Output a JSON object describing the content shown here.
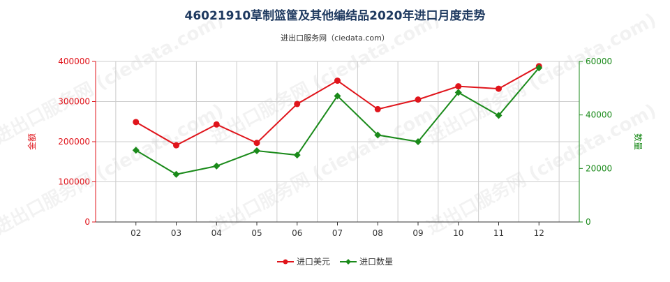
{
  "chart_data": {
    "type": "line",
    "title": "46021910草制篮筐及其他编结品2020年进口月度走势",
    "subtitle": "进出口服务网（ciedata.com）",
    "watermark": "进出口服务网 (ciedata.com)",
    "categories": [
      "02",
      "03",
      "04",
      "05",
      "06",
      "07",
      "08",
      "09",
      "10",
      "11",
      "12"
    ],
    "y_left": {
      "label": "金额",
      "ticks": [
        "0",
        "100000",
        "200000",
        "300000",
        "400000"
      ],
      "range": [
        0,
        400000
      ],
      "color": "#e0141b"
    },
    "y_right": {
      "label": "数量",
      "ticks": [
        "0",
        "20000",
        "40000",
        "60000"
      ],
      "range": [
        0,
        60000
      ],
      "color": "#1a8a1a"
    },
    "series": [
      {
        "name": "进口美元",
        "axis": "left",
        "color": "#e0141b",
        "marker": "circle",
        "values": [
          249000,
          191000,
          243000,
          197000,
          294000,
          352000,
          281000,
          305000,
          338000,
          332000,
          388000
        ]
      },
      {
        "name": "进口数量",
        "axis": "right",
        "color": "#1a8a1a",
        "marker": "diamond",
        "values": [
          26800,
          17800,
          20900,
          26600,
          25000,
          47100,
          32500,
          30000,
          48400,
          39800,
          57600
        ]
      }
    ],
    "grid": true,
    "legend_position": "bottom-center"
  }
}
